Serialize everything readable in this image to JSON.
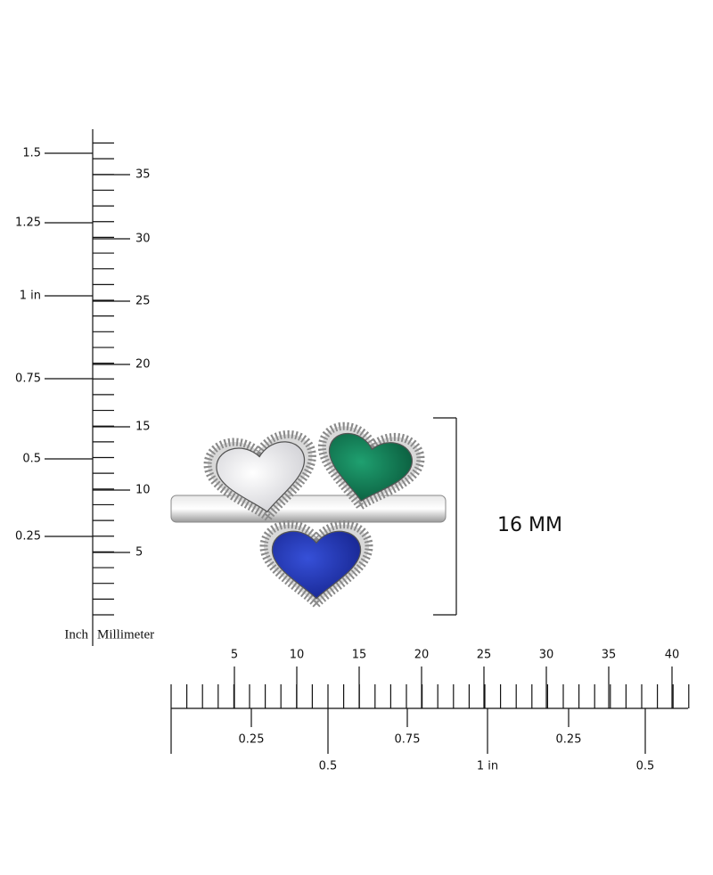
{
  "vertical_ruler": {
    "inch_labels": [
      "1.5",
      "1.25",
      "1 in",
      "0.75",
      "0.5",
      "0.25"
    ],
    "mm_labels": [
      "35",
      "30",
      "25",
      "20",
      "15",
      "10",
      "5"
    ],
    "inch_caption": "Inch",
    "mm_caption": "Millimeter"
  },
  "horizontal_ruler": {
    "mm_labels": [
      "5",
      "10",
      "15",
      "20",
      "25",
      "30",
      "35",
      "40"
    ],
    "inch_labels": [
      "0.25",
      "0.5",
      "0.75",
      "1 in",
      "0.25",
      "0.5"
    ]
  },
  "dimension_label": "16 MM"
}
